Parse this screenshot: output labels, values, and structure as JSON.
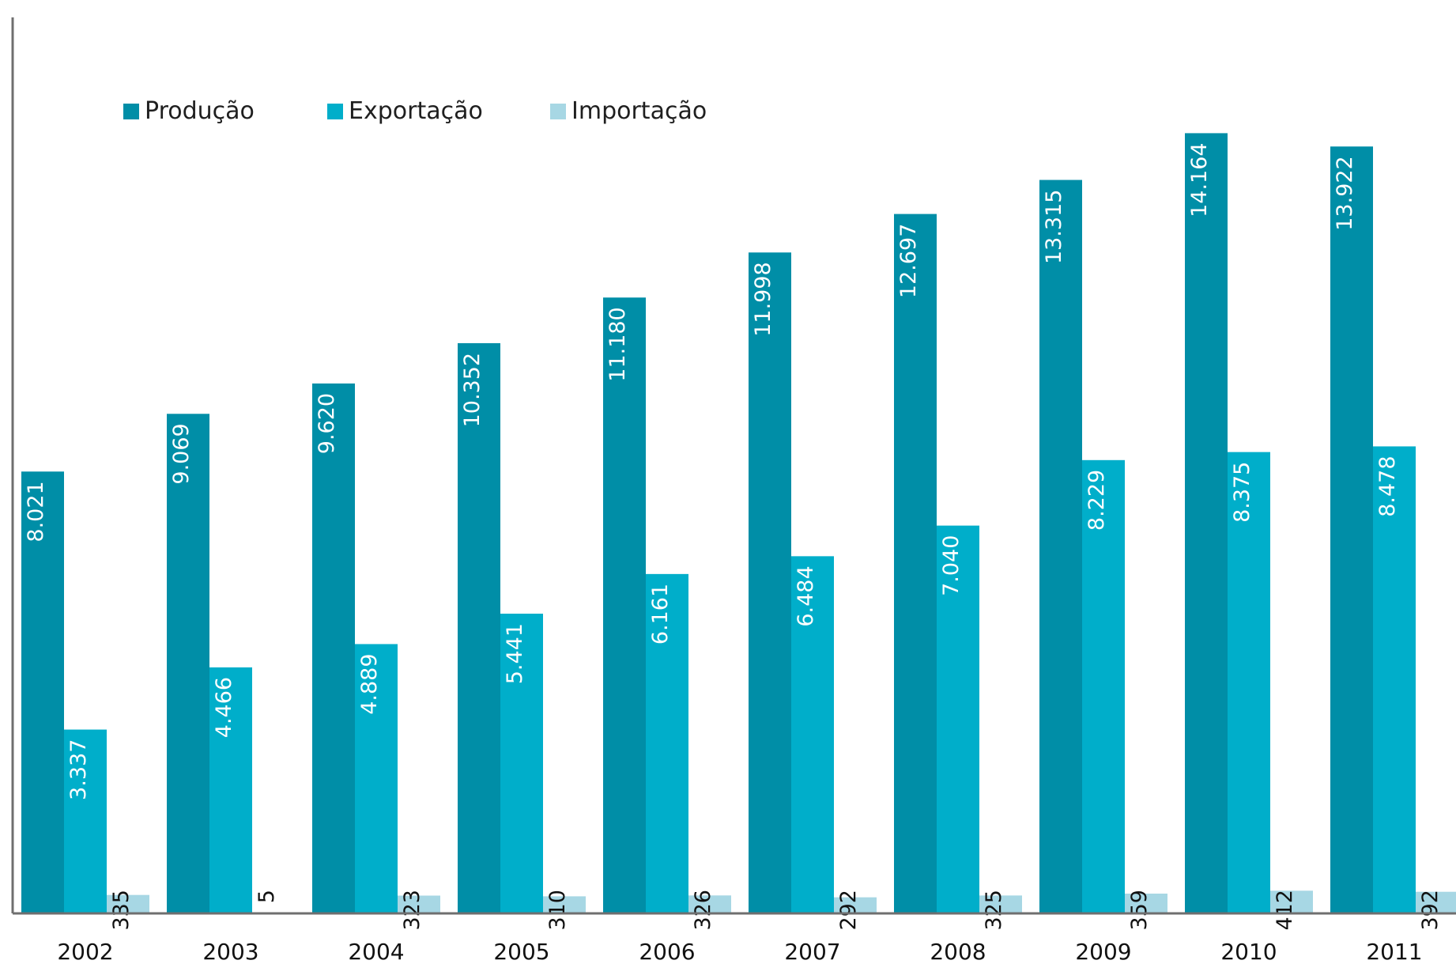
{
  "chart_data": {
    "type": "bar",
    "title": "",
    "xlabel": "",
    "ylabel": "",
    "categories": [
      "2002",
      "2003",
      "2004",
      "2005",
      "2006",
      "2007",
      "2008",
      "2009",
      "2010",
      "2011"
    ],
    "series": [
      {
        "name": "Produção",
        "color": "#008ea7",
        "values": [
          8021,
          9069,
          9620,
          10352,
          11180,
          11998,
          12697,
          13315,
          14164,
          13922
        ],
        "labels": [
          "8.021",
          "9.069",
          "9.620",
          "10.352",
          "11.180",
          "11.998",
          "12.697",
          "13.315",
          "14.164",
          "13.922"
        ]
      },
      {
        "name": "Exportação",
        "color": "#00aeca",
        "values": [
          3337,
          4466,
          4889,
          5441,
          6161,
          6484,
          7040,
          8229,
          8375,
          8478
        ],
        "labels": [
          "3.337",
          "4.466",
          "4.889",
          "5.441",
          "6.161",
          "6.484",
          "7.040",
          "8.229",
          "8.375",
          "8.478"
        ]
      },
      {
        "name": "Importação",
        "color": "#a7d7e4",
        "values": [
          335,
          5,
          323,
          310,
          326,
          292,
          325,
          359,
          412,
          392
        ],
        "labels": [
          "335",
          "5",
          "323",
          "310",
          "326",
          "292",
          "325",
          "359",
          "412",
          "392"
        ]
      }
    ],
    "ylim": [
      0,
      14500
    ],
    "grid": false,
    "legend_position": "top-left"
  }
}
